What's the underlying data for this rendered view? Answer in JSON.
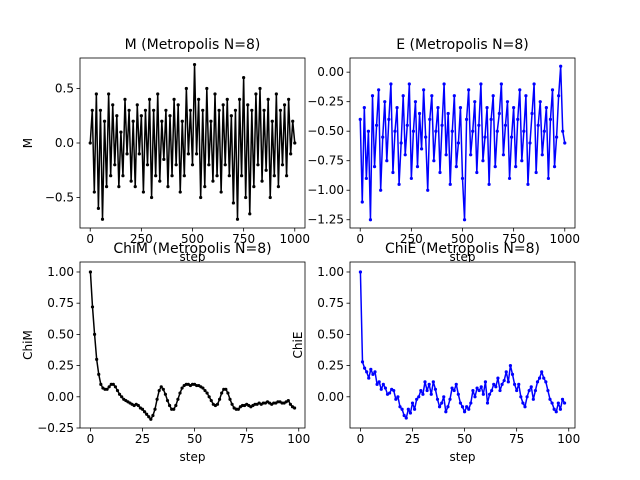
{
  "chart_data": [
    {
      "type": "line",
      "title": "M (Metropolis N=8)",
      "xlabel": "step",
      "ylabel": "M",
      "xlim": [
        -50,
        1050
      ],
      "ylim": [
        -0.78,
        0.78
      ],
      "xticks": [
        0,
        250,
        500,
        750,
        1000
      ],
      "xtick_labels": [
        "0",
        "250",
        "500",
        "750",
        "1000"
      ],
      "yticks": [
        -0.5,
        0,
        0.5
      ],
      "ytick_labels": [
        "−0.5",
        "0.0",
        "0.5"
      ],
      "color": "#000000",
      "markers": true,
      "series": [
        {
          "x": [
            0,
            10,
            20,
            30,
            40,
            50,
            60,
            70,
            80,
            90,
            100,
            110,
            120,
            130,
            140,
            150,
            160,
            170,
            180,
            190,
            200,
            210,
            220,
            230,
            240,
            250,
            260,
            270,
            280,
            290,
            300,
            310,
            320,
            330,
            340,
            350,
            360,
            370,
            380,
            390,
            400,
            410,
            420,
            430,
            440,
            450,
            460,
            470,
            480,
            490,
            500,
            510,
            520,
            530,
            540,
            550,
            560,
            570,
            580,
            590,
            600,
            610,
            620,
            630,
            640,
            650,
            660,
            670,
            680,
            690,
            700,
            710,
            720,
            730,
            740,
            750,
            760,
            770,
            780,
            790,
            800,
            810,
            820,
            830,
            840,
            850,
            860,
            870,
            880,
            890,
            900,
            910,
            920,
            930,
            940,
            950,
            960,
            970,
            980,
            990,
            1000
          ],
          "y": [
            0.0,
            0.3,
            -0.45,
            0.45,
            -0.6,
            0.3,
            -0.7,
            0.2,
            -0.4,
            0.45,
            -0.3,
            0.35,
            -0.2,
            0.25,
            -0.4,
            0.1,
            -0.3,
            0.4,
            -0.1,
            0.3,
            -0.35,
            0.2,
            -0.4,
            0.35,
            -0.1,
            0.25,
            -0.45,
            0.3,
            -0.2,
            0.4,
            -0.5,
            0.3,
            -0.3,
            0.45,
            -0.35,
            0.2,
            -0.15,
            0.3,
            -0.4,
            0.25,
            -0.3,
            0.4,
            -0.2,
            0.35,
            -0.45,
            0.2,
            -0.3,
            0.5,
            -0.1,
            0.3,
            -0.2,
            0.72,
            -0.1,
            0.4,
            -0.5,
            0.3,
            -0.4,
            0.5,
            -0.2,
            0.2,
            -0.35,
            0.45,
            -0.3,
            0.3,
            -0.45,
            0.35,
            -0.2,
            0.4,
            -0.3,
            0.25,
            -0.55,
            0.3,
            -0.7,
            0.4,
            -0.3,
            0.6,
            -0.5,
            0.35,
            -0.65,
            0.3,
            -0.4,
            0.45,
            -0.2,
            0.5,
            -0.35,
            0.3,
            -0.25,
            0.4,
            -0.5,
            0.2,
            -0.3,
            0.45,
            -0.4,
            0.3,
            -0.2,
            0.35,
            -0.3,
            0.4,
            -0.1,
            0.2,
            0.0
          ]
        }
      ]
    },
    {
      "type": "line",
      "title": "E (Metropolis N=8)",
      "xlabel": "step",
      "ylabel": "",
      "xlim": [
        -50,
        1050
      ],
      "ylim": [
        -1.32,
        0.12
      ],
      "xticks": [
        0,
        250,
        500,
        750,
        1000
      ],
      "xtick_labels": [
        "0",
        "250",
        "500",
        "750",
        "1000"
      ],
      "yticks": [
        -1.25,
        -1.0,
        -0.75,
        -0.5,
        -0.25,
        0.0
      ],
      "ytick_labels": [
        "−1.25",
        "−1.00",
        "−0.75",
        "−0.50",
        "−0.25",
        "0.00"
      ],
      "color": "#0000ff",
      "markers": true,
      "series": [
        {
          "x": [
            0,
            10,
            20,
            30,
            40,
            50,
            60,
            70,
            80,
            90,
            100,
            110,
            120,
            130,
            140,
            150,
            160,
            170,
            180,
            190,
            200,
            210,
            220,
            230,
            240,
            250,
            260,
            270,
            280,
            290,
            300,
            310,
            320,
            330,
            340,
            350,
            360,
            370,
            380,
            390,
            400,
            410,
            420,
            430,
            440,
            450,
            460,
            470,
            480,
            490,
            500,
            510,
            520,
            530,
            540,
            550,
            560,
            570,
            580,
            590,
            600,
            610,
            620,
            630,
            640,
            650,
            660,
            670,
            680,
            690,
            700,
            710,
            720,
            730,
            740,
            750,
            760,
            770,
            780,
            790,
            800,
            810,
            820,
            830,
            840,
            850,
            860,
            870,
            880,
            890,
            900,
            910,
            920,
            930,
            940,
            950,
            960,
            970,
            980,
            990,
            1000
          ],
          "y": [
            -0.4,
            -1.1,
            -0.3,
            -0.9,
            -0.5,
            -1.25,
            -0.2,
            -0.8,
            -0.45,
            -0.15,
            -1.0,
            -0.55,
            -0.25,
            -0.75,
            -0.4,
            -0.1,
            -0.85,
            -0.5,
            -0.3,
            -0.95,
            -0.6,
            -0.2,
            -0.7,
            -0.45,
            -0.1,
            -0.9,
            -0.5,
            -0.25,
            -0.8,
            -0.35,
            -0.65,
            -0.15,
            -0.55,
            -1.0,
            -0.4,
            -0.2,
            -0.75,
            -0.5,
            -0.3,
            -0.85,
            -0.45,
            -0.1,
            -0.7,
            -0.35,
            -0.95,
            -0.5,
            -0.2,
            -0.8,
            -0.6,
            -0.3,
            -0.9,
            -1.25,
            -0.4,
            -0.15,
            -0.7,
            -0.5,
            -0.25,
            -0.85,
            -0.45,
            -0.1,
            -0.75,
            -0.55,
            -0.3,
            -0.95,
            -0.4,
            -0.2,
            -0.8,
            -0.5,
            -0.35,
            -0.1,
            -0.7,
            -0.45,
            -0.25,
            -0.9,
            -0.55,
            -0.3,
            -0.8,
            -0.4,
            -0.15,
            -0.75,
            -0.5,
            -0.2,
            -0.95,
            -0.6,
            -0.35,
            -0.1,
            -0.85,
            -0.45,
            -0.25,
            -0.7,
            -0.5,
            -0.3,
            -0.9,
            -0.4,
            -0.15,
            -0.8,
            -0.55,
            -0.2,
            0.05,
            -0.5,
            -0.6
          ]
        }
      ]
    },
    {
      "type": "line",
      "title": "ChiM (Metropolis N=8)",
      "xlabel": "step",
      "ylabel": "ChiM",
      "xlim": [
        -5,
        103
      ],
      "ylim": [
        -0.25,
        1.08
      ],
      "xticks": [
        0,
        25,
        50,
        75,
        100
      ],
      "xtick_labels": [
        "0",
        "25",
        "50",
        "75",
        "100"
      ],
      "yticks": [
        -0.25,
        0.0,
        0.25,
        0.5,
        0.75,
        1.0
      ],
      "ytick_labels": [
        "−0.25",
        "0.00",
        "0.25",
        "0.50",
        "0.75",
        "1.00"
      ],
      "color": "#000000",
      "markers": true,
      "series": [
        {
          "x": [
            0,
            1,
            2,
            3,
            4,
            5,
            6,
            7,
            8,
            9,
            10,
            11,
            12,
            13,
            14,
            15,
            16,
            17,
            18,
            19,
            20,
            21,
            22,
            23,
            24,
            25,
            26,
            27,
            28,
            29,
            30,
            31,
            32,
            33,
            34,
            35,
            36,
            37,
            38,
            39,
            40,
            41,
            42,
            43,
            44,
            45,
            46,
            47,
            48,
            49,
            50,
            51,
            52,
            53,
            54,
            55,
            56,
            57,
            58,
            59,
            60,
            61,
            62,
            63,
            64,
            65,
            66,
            67,
            68,
            69,
            70,
            71,
            72,
            73,
            74,
            75,
            76,
            77,
            78,
            79,
            80,
            81,
            82,
            83,
            84,
            85,
            86,
            87,
            88,
            89,
            90,
            91,
            92,
            93,
            94,
            95,
            96,
            97,
            98
          ],
          "y": [
            1.0,
            0.72,
            0.5,
            0.3,
            0.18,
            0.1,
            0.07,
            0.06,
            0.06,
            0.08,
            0.1,
            0.1,
            0.08,
            0.05,
            0.02,
            0.0,
            -0.02,
            -0.03,
            -0.04,
            -0.05,
            -0.06,
            -0.07,
            -0.06,
            -0.07,
            -0.09,
            -0.1,
            -0.12,
            -0.14,
            -0.16,
            -0.18,
            -0.15,
            -0.1,
            -0.02,
            0.05,
            0.08,
            0.06,
            0.02,
            -0.03,
            -0.07,
            -0.1,
            -0.1,
            -0.07,
            -0.02,
            0.03,
            0.07,
            0.09,
            0.1,
            0.1,
            0.09,
            0.1,
            0.1,
            0.09,
            0.09,
            0.08,
            0.07,
            0.05,
            0.03,
            0.0,
            -0.03,
            -0.06,
            -0.07,
            -0.06,
            -0.02,
            0.03,
            0.06,
            0.06,
            0.03,
            -0.02,
            -0.06,
            -0.09,
            -0.1,
            -0.1,
            -0.08,
            -0.07,
            -0.07,
            -0.06,
            -0.07,
            -0.08,
            -0.07,
            -0.06,
            -0.06,
            -0.05,
            -0.06,
            -0.05,
            -0.05,
            -0.04,
            -0.05,
            -0.06,
            -0.05,
            -0.05,
            -0.04,
            -0.04,
            -0.05,
            -0.05,
            -0.04,
            -0.03,
            -0.06,
            -0.08,
            -0.09
          ]
        }
      ]
    },
    {
      "type": "line",
      "title": "ChiE (Metropolis N=8)",
      "xlabel": "step",
      "ylabel": "ChiE",
      "xlim": [
        -5,
        103
      ],
      "ylim": [
        -0.25,
        1.08
      ],
      "xticks": [
        0,
        25,
        50,
        75,
        100
      ],
      "xtick_labels": [
        "0",
        "25",
        "50",
        "75",
        "100"
      ],
      "yticks": [
        0.0,
        0.25,
        0.5,
        0.75,
        1.0
      ],
      "ytick_labels": [
        "0.00",
        "0.25",
        "0.50",
        "0.75",
        "1.00"
      ],
      "color": "#0000ff",
      "markers": true,
      "series": [
        {
          "x": [
            0,
            1,
            2,
            3,
            4,
            5,
            6,
            7,
            8,
            9,
            10,
            11,
            12,
            13,
            14,
            15,
            16,
            17,
            18,
            19,
            20,
            21,
            22,
            23,
            24,
            25,
            26,
            27,
            28,
            29,
            30,
            31,
            32,
            33,
            34,
            35,
            36,
            37,
            38,
            39,
            40,
            41,
            42,
            43,
            44,
            45,
            46,
            47,
            48,
            49,
            50,
            51,
            52,
            53,
            54,
            55,
            56,
            57,
            58,
            59,
            60,
            61,
            62,
            63,
            64,
            65,
            66,
            67,
            68,
            69,
            70,
            71,
            72,
            73,
            74,
            75,
            76,
            77,
            78,
            79,
            80,
            81,
            82,
            83,
            84,
            85,
            86,
            87,
            88,
            89,
            90,
            91,
            92,
            93,
            94,
            95,
            96,
            97,
            98
          ],
          "y": [
            1.0,
            0.28,
            0.23,
            0.2,
            0.15,
            0.22,
            0.18,
            0.2,
            0.1,
            0.12,
            0.06,
            0.1,
            0.07,
            0.02,
            0.03,
            0.06,
            0.05,
            -0.02,
            0.0,
            -0.08,
            -0.1,
            -0.15,
            -0.17,
            -0.1,
            -0.13,
            -0.05,
            -0.1,
            -0.02,
            0.0,
            0.05,
            0.02,
            0.12,
            0.05,
            0.1,
            0.02,
            0.12,
            0.06,
            -0.02,
            -0.08,
            -0.05,
            0.0,
            -0.12,
            -0.08,
            -0.02,
            0.07,
            0.05,
            0.1,
            0.02,
            -0.05,
            -0.08,
            -0.12,
            -0.08,
            -0.1,
            -0.05,
            0.05,
            0.0,
            0.07,
            0.05,
            0.08,
            0.02,
            0.12,
            -0.05,
            0.02,
            0.05,
            0.1,
            0.08,
            0.15,
            0.05,
            0.1,
            0.13,
            0.2,
            0.12,
            0.25,
            0.18,
            0.1,
            0.05,
            0.1,
            0.0,
            -0.05,
            -0.08,
            0.0,
            0.05,
            0.08,
            -0.02,
            0.05,
            0.12,
            0.15,
            0.2,
            0.15,
            0.12,
            0.05,
            -0.02,
            -0.05,
            -0.1,
            -0.12,
            -0.05,
            -0.1,
            -0.02,
            -0.05
          ]
        }
      ]
    }
  ]
}
